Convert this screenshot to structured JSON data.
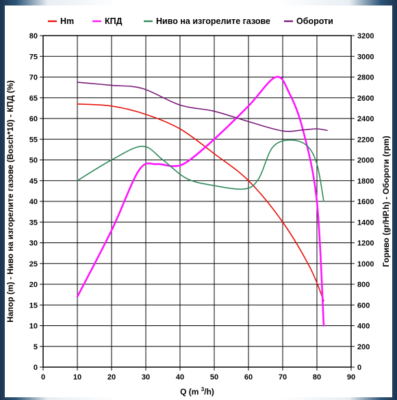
{
  "chart_data": {
    "type": "line",
    "x_axis": {
      "label": "Q (m³/h)",
      "min": 0,
      "max": 90,
      "ticks": [
        0,
        10,
        20,
        30,
        40,
        50,
        60,
        70,
        80,
        90
      ]
    },
    "y_left": {
      "label": "Напор (m) - Ниво на изгорелите газове (Bosch*10) - КПД (%)",
      "min": 0,
      "max": 80,
      "ticks": [
        0,
        5,
        10,
        15,
        20,
        25,
        30,
        35,
        40,
        45,
        50,
        55,
        60,
        65,
        70,
        75,
        80
      ]
    },
    "y_right": {
      "label": "Гориво (gr/HP.h) - Обороти (rpm)",
      "min": 0,
      "max": 3200,
      "ticks": [
        0,
        200,
        400,
        600,
        800,
        1000,
        1200,
        1400,
        1600,
        1800,
        2000,
        2200,
        2400,
        2600,
        2800,
        3000,
        3200
      ]
    },
    "grid": true,
    "legend_position": "top",
    "series": [
      {
        "name": "Hm",
        "color": "#e8120c",
        "axis": "left",
        "points": [
          [
            10,
            63.5
          ],
          [
            20,
            63
          ],
          [
            30,
            61
          ],
          [
            40,
            57.5
          ],
          [
            50,
            51.5
          ],
          [
            60,
            45
          ],
          [
            70,
            35
          ],
          [
            78,
            24
          ],
          [
            82,
            16
          ]
        ]
      },
      {
        "name": "КПД",
        "color": "#ff14ff",
        "axis": "left",
        "points": [
          [
            10,
            17
          ],
          [
            20,
            33
          ],
          [
            28,
            47.5
          ],
          [
            33,
            49
          ],
          [
            38,
            48.5
          ],
          [
            42,
            49.5
          ],
          [
            50,
            55
          ],
          [
            60,
            63
          ],
          [
            68,
            70
          ],
          [
            72,
            66
          ],
          [
            76,
            57
          ],
          [
            80,
            40
          ],
          [
            82,
            10
          ]
        ]
      },
      {
        "name": "Ниво на изгорелите газове",
        "color": "#2f8a5a",
        "axis": "left",
        "points": [
          [
            10,
            45
          ],
          [
            20,
            50
          ],
          [
            29,
            53.3
          ],
          [
            35,
            50
          ],
          [
            42,
            45.5
          ],
          [
            50,
            43.8
          ],
          [
            59,
            43
          ],
          [
            63,
            45.5
          ],
          [
            67,
            53
          ],
          [
            72,
            54.8
          ],
          [
            77,
            53.5
          ],
          [
            80,
            49
          ],
          [
            82,
            40
          ]
        ]
      },
      {
        "name": "Обороти",
        "color": "#7a1a7a",
        "axis": "right",
        "points": [
          [
            10,
            2750
          ],
          [
            20,
            2720
          ],
          [
            29,
            2690
          ],
          [
            40,
            2530
          ],
          [
            50,
            2470
          ],
          [
            60,
            2370
          ],
          [
            70,
            2280
          ],
          [
            76,
            2290
          ],
          [
            80,
            2300
          ],
          [
            83,
            2285
          ]
        ]
      }
    ]
  }
}
